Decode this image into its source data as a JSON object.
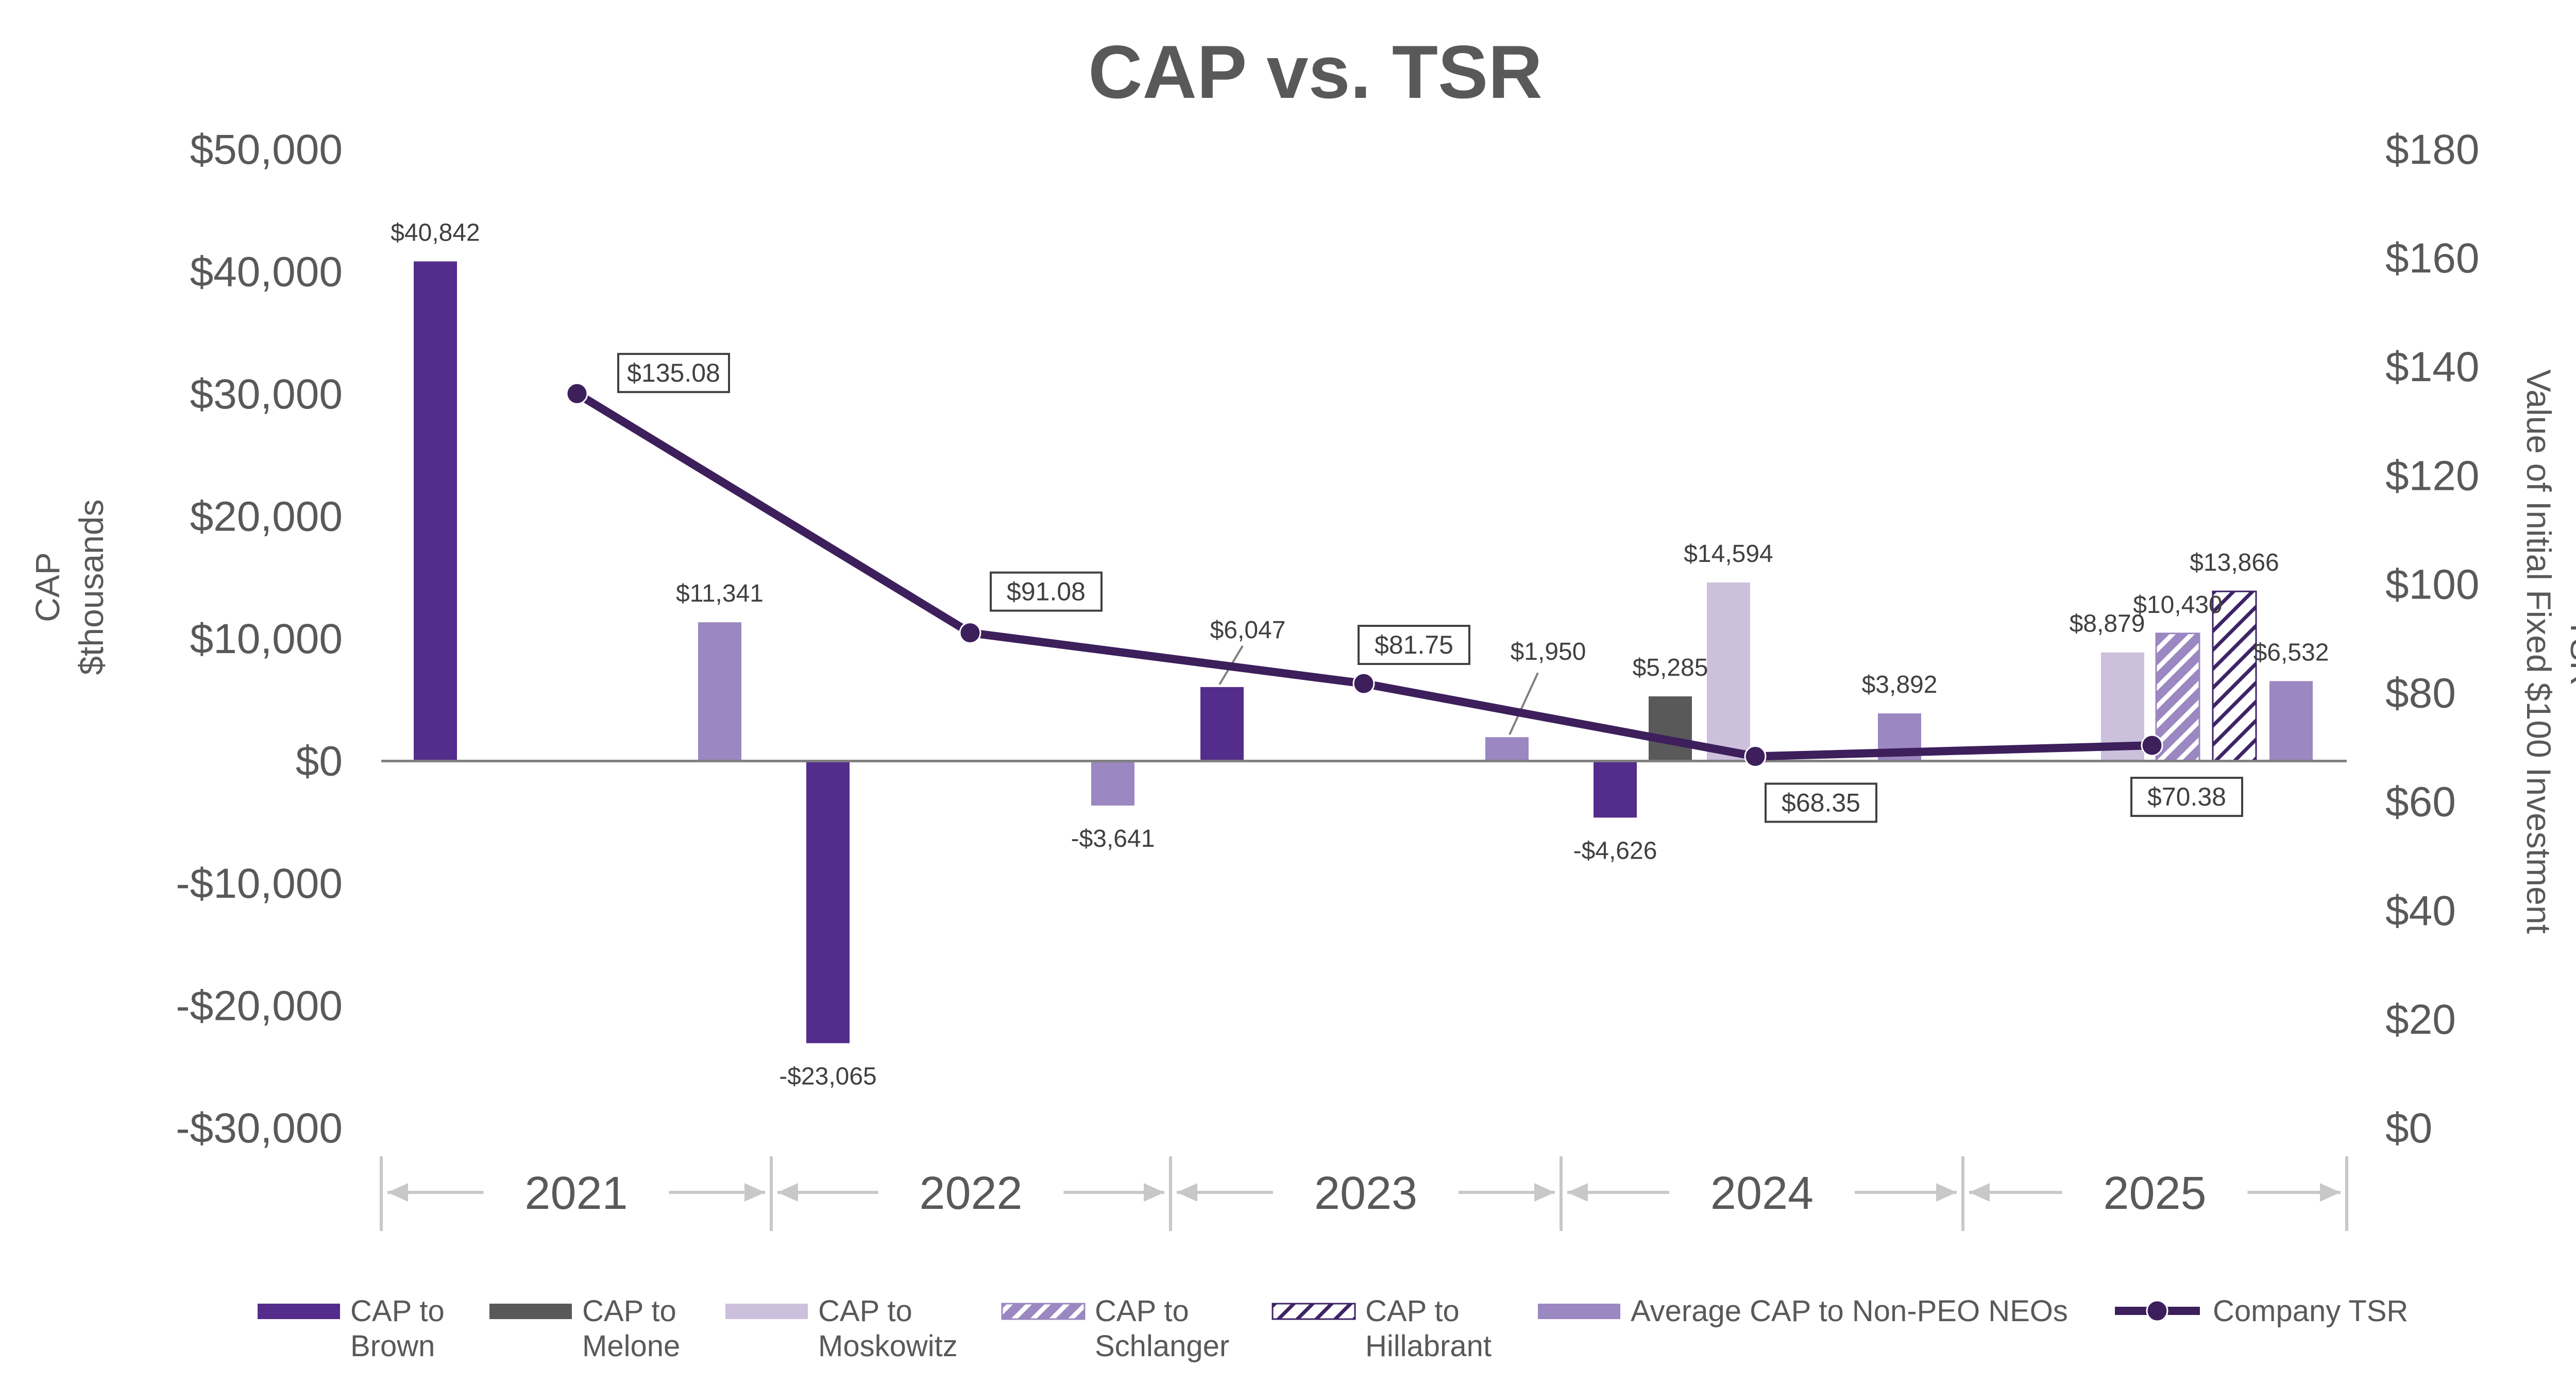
{
  "chart_data": {
    "type": "bar",
    "title": "CAP vs. TSR",
    "y_left": {
      "label_line1": "CAP",
      "label_line2": "$thousands",
      "range": [
        -30000,
        50000
      ],
      "ticks": [
        {
          "value": 50000,
          "label": "$50,000"
        },
        {
          "value": 40000,
          "label": "$40,000"
        },
        {
          "value": 30000,
          "label": "$30,000"
        },
        {
          "value": 20000,
          "label": "$20,000"
        },
        {
          "value": 10000,
          "label": "$10,000"
        },
        {
          "value": 0,
          "label": "$0"
        },
        {
          "value": -10000,
          "label": "-$10,000"
        },
        {
          "value": -20000,
          "label": "-$20,000"
        },
        {
          "value": -30000,
          "label": "-$30,000"
        }
      ]
    },
    "y_right": {
      "label_line1": "TSR",
      "label_line2": "Value of Initial Fixed $100 Investment",
      "range": [
        0,
        180
      ],
      "ticks": [
        {
          "value": 180,
          "label": "$180"
        },
        {
          "value": 160,
          "label": "$160"
        },
        {
          "value": 140,
          "label": "$140"
        },
        {
          "value": 120,
          "label": "$120"
        },
        {
          "value": 100,
          "label": "$100"
        },
        {
          "value": 80,
          "label": "$80"
        },
        {
          "value": 60,
          "label": "$60"
        },
        {
          "value": 40,
          "label": "$40"
        },
        {
          "value": 20,
          "label": "$20"
        },
        {
          "value": 0,
          "label": "$0"
        }
      ]
    },
    "years": [
      "2021",
      "2022",
      "2023",
      "2024",
      "2025"
    ],
    "series": [
      {
        "key": "brown",
        "legend_line1": "CAP to",
        "legend_line2": "Brown",
        "color": "#542c8c",
        "pattern": "solid"
      },
      {
        "key": "melone",
        "legend_line1": "CAP to",
        "legend_line2": "Melone",
        "color": "#595959",
        "pattern": "solid"
      },
      {
        "key": "moskowitz",
        "legend_line1": "CAP to",
        "legend_line2": "Moskowitz",
        "color": "#ccc0dc",
        "pattern": "solid"
      },
      {
        "key": "schlanger",
        "legend_line1": "CAP to",
        "legend_line2": "Schlanger",
        "color": "#9b87c1",
        "pattern": "hatch-light"
      },
      {
        "key": "hillabrant",
        "legend_line1": "CAP to",
        "legend_line2": "Hillabrant",
        "color": "#3d2466",
        "pattern": "hatch-dark"
      },
      {
        "key": "nonpeo",
        "legend_line1": "Average CAP to Non-PEO NEOs",
        "legend_line2": "",
        "color": "#9b87c1",
        "pattern": "solid"
      }
    ],
    "bars": [
      {
        "year": "2021",
        "series": "brown",
        "value": 40842,
        "label": "$40,842"
      },
      {
        "year": "2021",
        "series": "nonpeo",
        "value": 11341,
        "label": "$11,341"
      },
      {
        "year": "2022",
        "series": "brown",
        "value": -23065,
        "label": "-$23,065"
      },
      {
        "year": "2022",
        "series": "nonpeo",
        "value": -3641,
        "label": "-$3,641"
      },
      {
        "year": "2023",
        "series": "brown",
        "value": 6047,
        "label": "$6,047"
      },
      {
        "year": "2023",
        "series": "nonpeo",
        "value": 1950,
        "label": "$1,950"
      },
      {
        "year": "2024",
        "series": "brown",
        "value": -4626,
        "label": "-$4,626"
      },
      {
        "year": "2024",
        "series": "melone",
        "value": 5285,
        "label": "$5,285"
      },
      {
        "year": "2024",
        "series": "moskowitz",
        "value": 14594,
        "label": "$14,594"
      },
      {
        "year": "2024",
        "series": "nonpeo",
        "value": 3892,
        "label": "$3,892"
      },
      {
        "year": "2025",
        "series": "moskowitz",
        "value": 8879,
        "label": "$8,879"
      },
      {
        "year": "2025",
        "series": "schlanger",
        "value": 10430,
        "label": "$10,430"
      },
      {
        "year": "2025",
        "series": "hillabrant",
        "value": 13866,
        "label": "$13,866"
      },
      {
        "year": "2025",
        "series": "nonpeo",
        "value": 6532,
        "label": "$6,532"
      }
    ],
    "tsr": {
      "legend": "Company TSR",
      "color": "#3d1f5c",
      "points": [
        {
          "year": "2021",
          "value": 135.08,
          "label": "$135.08"
        },
        {
          "year": "2022",
          "value": 91.08,
          "label": "$91.08"
        },
        {
          "year": "2023",
          "value": 81.75,
          "label": "$81.75"
        },
        {
          "year": "2024",
          "value": 68.35,
          "label": "$68.35"
        },
        {
          "year": "2025",
          "value": 70.38,
          "label": "$70.38"
        }
      ]
    }
  }
}
